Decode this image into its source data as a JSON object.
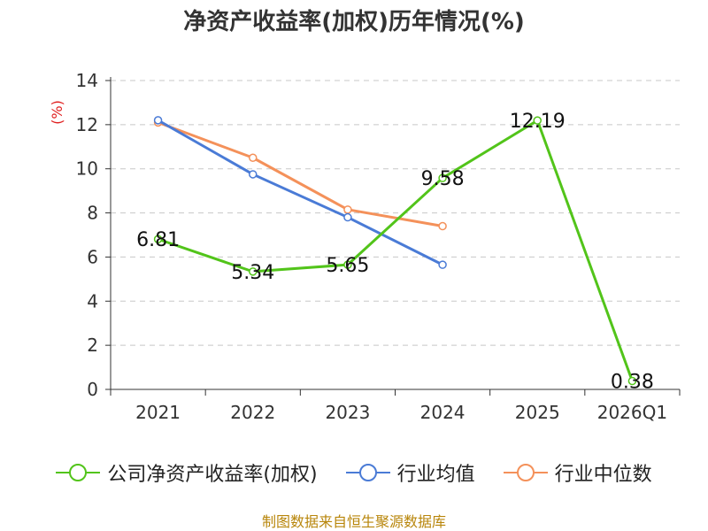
{
  "chart_data": {
    "type": "line",
    "title": "净资产收益率(加权)历年情况(%)",
    "ylabel": "(%)",
    "xlabel": "",
    "ylim": [
      0,
      14
    ],
    "yticks": [
      0,
      2,
      4,
      6,
      8,
      10,
      12,
      14
    ],
    "grid": true,
    "categories": [
      "2021",
      "2022",
      "2023",
      "2024",
      "2025",
      "2026Q1"
    ],
    "series": [
      {
        "name": "公司净资产收益率(加权)",
        "color": "#52c41a",
        "values": [
          6.81,
          5.34,
          5.65,
          9.58,
          12.19,
          0.38
        ],
        "show_labels": true,
        "labels": [
          "6.81",
          "5.34",
          "5.65",
          "9.58",
          "12.19",
          "0.38"
        ]
      },
      {
        "name": "行业均值",
        "color": "#4a7bd6",
        "values": [
          12.2,
          9.75,
          7.8,
          5.65,
          null,
          null
        ],
        "show_labels": false
      },
      {
        "name": "行业中位数",
        "color": "#f4915a",
        "values": [
          12.1,
          10.5,
          8.15,
          7.4,
          null,
          null
        ],
        "show_labels": false
      }
    ],
    "legend_position": "bottom",
    "source": "制图数据来自恒生聚源数据库"
  }
}
